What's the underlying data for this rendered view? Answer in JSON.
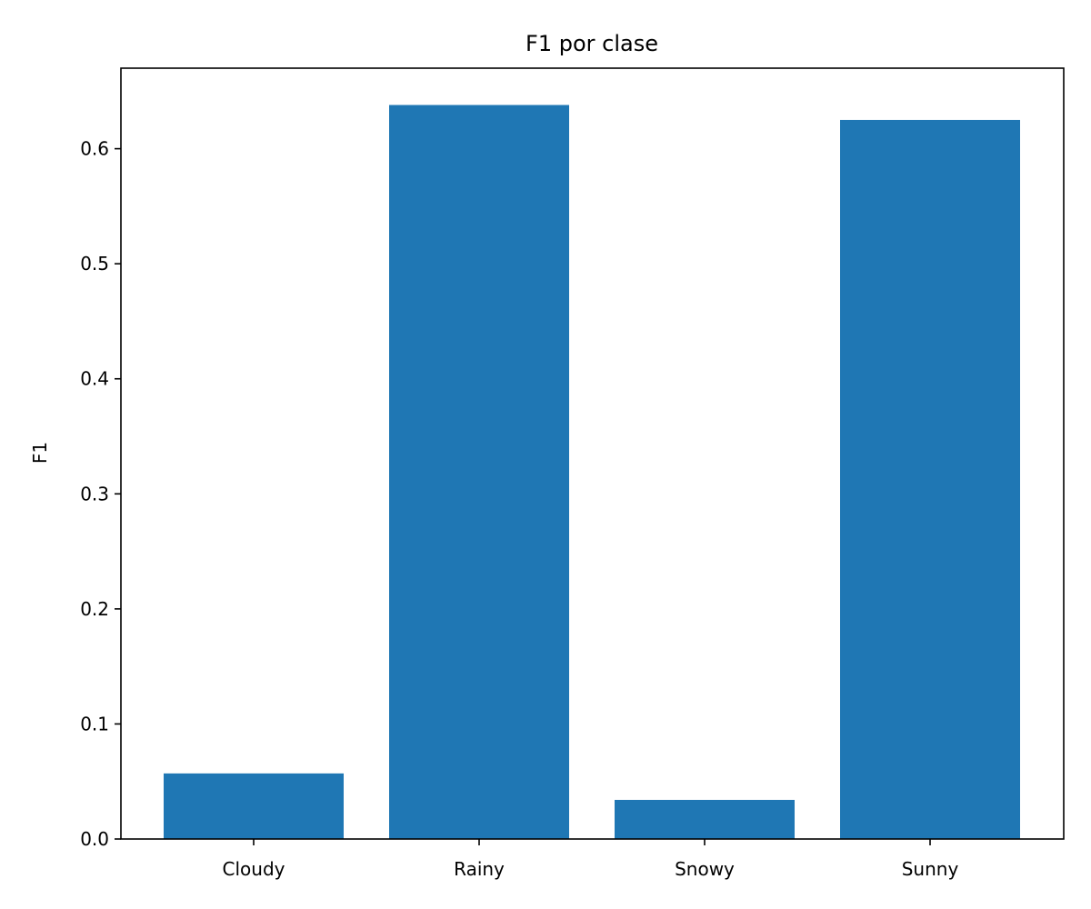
{
  "chart_data": {
    "type": "bar",
    "title": "F1 por clase",
    "xlabel": "",
    "ylabel": "F1",
    "categories": [
      "Cloudy",
      "Rainy",
      "Snowy",
      "Sunny"
    ],
    "values": [
      0.057,
      0.638,
      0.034,
      0.625
    ],
    "ylim": [
      0,
      0.67
    ],
    "yticks": [
      0.0,
      0.1,
      0.2,
      0.3,
      0.4,
      0.5,
      0.6
    ],
    "ytick_labels": [
      "0.0",
      "0.1",
      "0.2",
      "0.3",
      "0.4",
      "0.5",
      "0.6"
    ],
    "grid": false,
    "legend": "none",
    "bar_color": "#1f77b4"
  }
}
